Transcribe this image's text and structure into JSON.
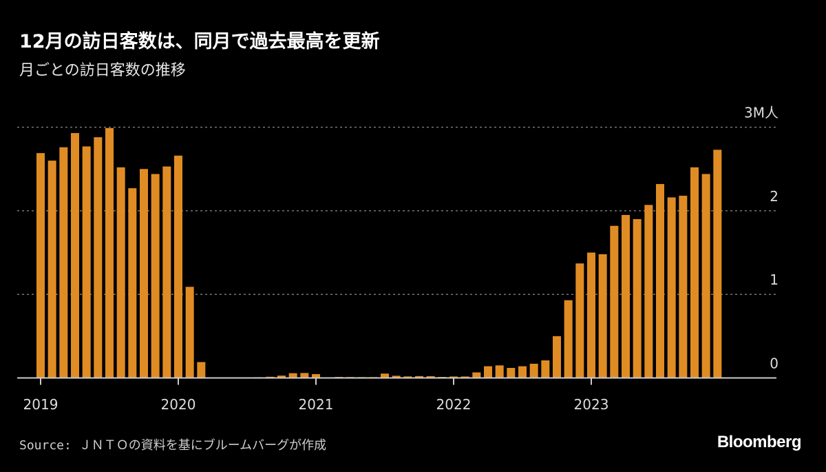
{
  "title": "12月の訪日客数は、同月で過去最高を更新",
  "subtitle": "月ごとの訪日客数の推移",
  "source": "Source: ＪＮＴＯの資料を基にブルームバーグが作成",
  "logo": "Bloomberg",
  "colors": {
    "bar": "#E08C24",
    "background": "#000000",
    "grid": "#777777"
  },
  "chart_data": {
    "type": "bar",
    "title": "12月の訪日客数は、同月で過去最高を更新",
    "subtitle": "月ごとの訪日客数の推移",
    "unit": "M人",
    "xlabel": "",
    "ylabel": "",
    "ylim": [
      0,
      3
    ],
    "yticks": [
      0,
      1,
      2,
      3
    ],
    "ytick_labels": [
      "0",
      "1",
      "2",
      "3M人"
    ],
    "xtick_labels": [
      "2019",
      "2020",
      "2021",
      "2022",
      "2023"
    ],
    "grid": true,
    "x_start": "2019-01",
    "frequency": "monthly",
    "values": [
      2.69,
      2.6,
      2.76,
      2.93,
      2.77,
      2.88,
      2.99,
      2.52,
      2.27,
      2.5,
      2.44,
      2.53,
      2.66,
      1.09,
      0.19,
      0.003,
      0.002,
      0.003,
      0.004,
      0.009,
      0.014,
      0.028,
      0.057,
      0.059,
      0.046,
      0.007,
      0.012,
      0.011,
      0.01,
      0.01,
      0.052,
      0.026,
      0.018,
      0.022,
      0.021,
      0.012,
      0.017,
      0.017,
      0.066,
      0.14,
      0.15,
      0.12,
      0.14,
      0.17,
      0.21,
      0.5,
      0.93,
      1.37,
      1.5,
      1.48,
      1.82,
      1.95,
      1.9,
      2.07,
      2.32,
      2.16,
      2.18,
      2.52,
      2.44,
      2.73
    ]
  }
}
